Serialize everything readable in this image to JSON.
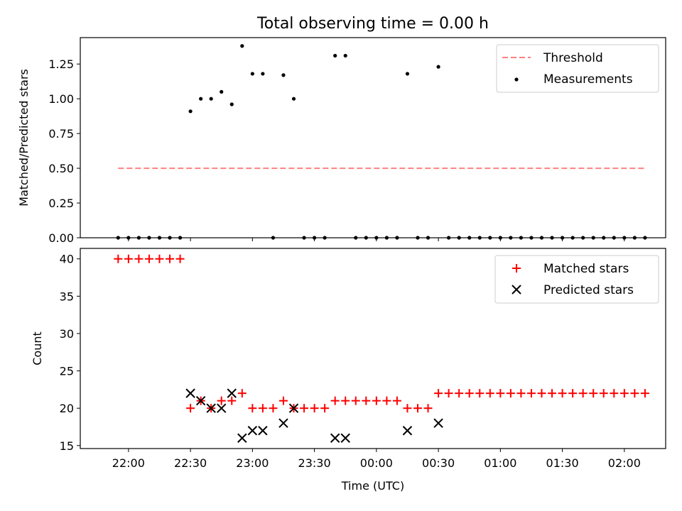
{
  "chart_data": [
    {
      "type": "scatter",
      "title": "Total observing time = 0.00 h",
      "ylabel": "Matched/Predicted stars",
      "ylim": [
        0,
        1.44
      ],
      "xlim": [
        -14,
        156
      ],
      "yticks": [
        0.0,
        0.25,
        0.5,
        0.75,
        1.0,
        1.25
      ],
      "ytick_labels": [
        "0.00",
        "0.25",
        "0.50",
        "0.75",
        "1.00",
        "1.25"
      ],
      "xtick_values": [
        0,
        18,
        36,
        54,
        72,
        90,
        108,
        126,
        144
      ],
      "legend": {
        "placement": "top-right",
        "entries": [
          "Threshold",
          "Measurements"
        ]
      },
      "threshold": {
        "name": "Threshold",
        "value": 0.5,
        "x_range": [
          -3,
          150
        ],
        "color": "#ff8080"
      },
      "measurements": {
        "name": "Measurements",
        "color": "#000000",
        "points": [
          [
            -3,
            0
          ],
          [
            0,
            0
          ],
          [
            3,
            0
          ],
          [
            6,
            0
          ],
          [
            9,
            0
          ],
          [
            12,
            0
          ],
          [
            15,
            0
          ],
          [
            18,
            0.91
          ],
          [
            21,
            1.0
          ],
          [
            24,
            1.0
          ],
          [
            27,
            1.05
          ],
          [
            30,
            0.96
          ],
          [
            33,
            1.38
          ],
          [
            36,
            1.18
          ],
          [
            39,
            1.18
          ],
          [
            42,
            0
          ],
          [
            45,
            1.17
          ],
          [
            48,
            1.0
          ],
          [
            51,
            0
          ],
          [
            54,
            0
          ],
          [
            57,
            0
          ],
          [
            60,
            1.31
          ],
          [
            63,
            1.31
          ],
          [
            66,
            0
          ],
          [
            69,
            0
          ],
          [
            72,
            0
          ],
          [
            75,
            0
          ],
          [
            78,
            0
          ],
          [
            81,
            1.18
          ],
          [
            84,
            0
          ],
          [
            87,
            0
          ],
          [
            90,
            1.23
          ],
          [
            93,
            0
          ],
          [
            96,
            0
          ],
          [
            99,
            0
          ],
          [
            102,
            0
          ],
          [
            105,
            0
          ],
          [
            108,
            0
          ],
          [
            111,
            0
          ],
          [
            114,
            0
          ],
          [
            117,
            0
          ],
          [
            120,
            0
          ],
          [
            123,
            0
          ],
          [
            126,
            0
          ],
          [
            129,
            0
          ],
          [
            132,
            0
          ],
          [
            135,
            0
          ],
          [
            138,
            0
          ],
          [
            141,
            0
          ],
          [
            144,
            0
          ],
          [
            147,
            0
          ],
          [
            150,
            0
          ]
        ]
      }
    },
    {
      "type": "scatter",
      "xlabel": "Time (UTC)",
      "ylabel": "Count",
      "ylim": [
        14.6,
        41.4
      ],
      "xlim": [
        -14,
        156
      ],
      "yticks": [
        15,
        20,
        25,
        30,
        35,
        40
      ],
      "ytick_labels": [
        "15",
        "20",
        "25",
        "30",
        "35",
        "40"
      ],
      "xtick_values": [
        0,
        18,
        36,
        54,
        72,
        90,
        108,
        126,
        144
      ],
      "xtick_labels": [
        "22:00",
        "22:30",
        "23:00",
        "23:30",
        "00:00",
        "00:30",
        "01:00",
        "01:30",
        "02:00"
      ],
      "legend": {
        "placement": "top-right",
        "entries": [
          "Matched stars",
          "Predicted stars"
        ]
      },
      "matched": {
        "name": "Matched stars",
        "color": "#ff0000",
        "points": [
          [
            -3,
            40
          ],
          [
            0,
            40
          ],
          [
            3,
            40
          ],
          [
            6,
            40
          ],
          [
            9,
            40
          ],
          [
            12,
            40
          ],
          [
            15,
            40
          ],
          [
            18,
            20
          ],
          [
            21,
            21
          ],
          [
            24,
            20
          ],
          [
            27,
            21
          ],
          [
            30,
            21
          ],
          [
            33,
            22
          ],
          [
            36,
            20
          ],
          [
            39,
            20
          ],
          [
            42,
            20
          ],
          [
            45,
            21
          ],
          [
            48,
            20
          ],
          [
            51,
            20
          ],
          [
            54,
            20
          ],
          [
            57,
            20
          ],
          [
            60,
            21
          ],
          [
            63,
            21
          ],
          [
            66,
            21
          ],
          [
            69,
            21
          ],
          [
            72,
            21
          ],
          [
            75,
            21
          ],
          [
            78,
            21
          ],
          [
            81,
            20
          ],
          [
            84,
            20
          ],
          [
            87,
            20
          ],
          [
            90,
            22
          ],
          [
            93,
            22
          ],
          [
            96,
            22
          ],
          [
            99,
            22
          ],
          [
            102,
            22
          ],
          [
            105,
            22
          ],
          [
            108,
            22
          ],
          [
            111,
            22
          ],
          [
            114,
            22
          ],
          [
            117,
            22
          ],
          [
            120,
            22
          ],
          [
            123,
            22
          ],
          [
            126,
            22
          ],
          [
            129,
            22
          ],
          [
            132,
            22
          ],
          [
            135,
            22
          ],
          [
            138,
            22
          ],
          [
            141,
            22
          ],
          [
            144,
            22
          ],
          [
            147,
            22
          ],
          [
            150,
            22
          ]
        ]
      },
      "predicted": {
        "name": "Predicted stars",
        "color": "#000000",
        "points": [
          [
            18,
            22
          ],
          [
            21,
            21
          ],
          [
            24,
            20
          ],
          [
            27,
            20
          ],
          [
            30,
            22
          ],
          [
            33,
            16
          ],
          [
            36,
            17
          ],
          [
            39,
            17
          ],
          [
            45,
            18
          ],
          [
            48,
            20
          ],
          [
            60,
            16
          ],
          [
            63,
            16
          ],
          [
            81,
            17
          ],
          [
            90,
            18
          ]
        ]
      }
    }
  ]
}
